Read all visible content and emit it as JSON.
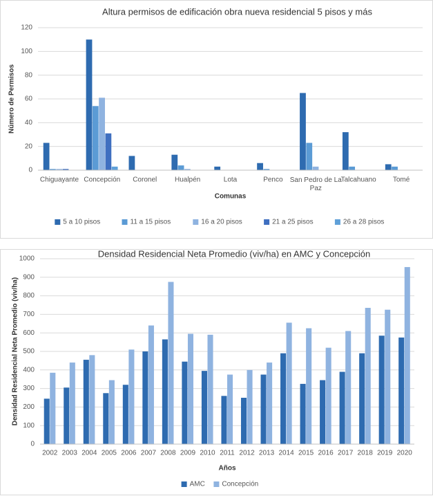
{
  "chart_data": [
    {
      "type": "bar",
      "title": "Altura permisos de edificación obra nueva residencial 5 pisos y más",
      "x_label": "Comunas",
      "y_label": "Número de Permisos",
      "categories": [
        "Chiguayante",
        "Concepción",
        "Coronel",
        "Hualpén",
        "Lota",
        "Penco",
        "San Pedro de La Paz",
        "Talcahuano",
        "Tomé"
      ],
      "series": [
        {
          "name": "5 a 10 pisos",
          "color": "#2e6bb0",
          "values": [
            23,
            110,
            12,
            13,
            3,
            6,
            65,
            32,
            5
          ]
        },
        {
          "name": "11 a 15 pisos",
          "color": "#5b9bd5",
          "values": [
            1,
            54,
            0,
            4,
            0,
            1,
            23,
            3,
            3
          ]
        },
        {
          "name": "16 a 20 pisos",
          "color": "#8fb3e0",
          "values": [
            1,
            61,
            0,
            1,
            0,
            0,
            3,
            0,
            0
          ]
        },
        {
          "name": "21 a 25 pisos",
          "color": "#3f6fc0",
          "values": [
            1,
            31,
            0,
            0,
            0,
            0,
            0,
            0,
            0
          ]
        },
        {
          "name": "26 a 28 pisos",
          "color": "#5fa0d8",
          "values": [
            0,
            3,
            0,
            0,
            0,
            0,
            0,
            0,
            0
          ]
        }
      ],
      "ylim": [
        0,
        120
      ],
      "yticks": [
        0,
        20,
        40,
        60,
        80,
        100,
        120
      ],
      "grid": true,
      "legend": "bottom"
    },
    {
      "type": "bar",
      "title": "Densidad Residencial Neta Promedio (viv/ha) en AMC y Concepción",
      "x_label": "Años",
      "y_label": "Densidad Residencial Neta Promedio (viv/ha)",
      "categories": [
        "2002",
        "2003",
        "2004",
        "2005",
        "2006",
        "2007",
        "2008",
        "2009",
        "2010",
        "2011",
        "2012",
        "2013",
        "2014",
        "2015",
        "2016",
        "2017",
        "2018",
        "2019",
        "2020"
      ],
      "series": [
        {
          "name": "AMC",
          "color": "#2e6bb0",
          "values": [
            245,
            305,
            455,
            275,
            320,
            500,
            565,
            445,
            395,
            260,
            250,
            375,
            490,
            325,
            345,
            390,
            490,
            585,
            575
          ]
        },
        {
          "name": "Concepción",
          "color": "#8fb3e0",
          "values": [
            385,
            440,
            480,
            345,
            510,
            640,
            875,
            595,
            590,
            375,
            400,
            440,
            655,
            625,
            520,
            610,
            735,
            725,
            955
          ]
        }
      ],
      "ylim": [
        0,
        1000
      ],
      "yticks": [
        0,
        100,
        200,
        300,
        400,
        500,
        600,
        700,
        800,
        900,
        1000
      ],
      "grid": true,
      "legend": "bottom"
    }
  ]
}
